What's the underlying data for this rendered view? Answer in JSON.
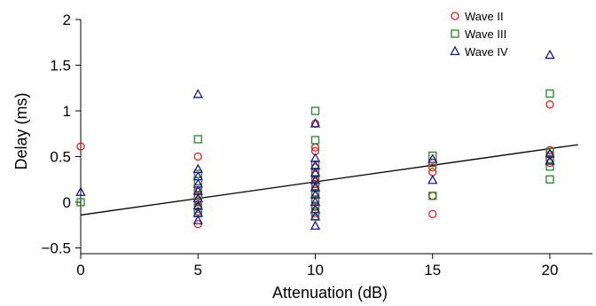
{
  "chart_data": {
    "type": "scatter",
    "title": "",
    "xlabel": "Attenuation (dB)",
    "ylabel": "Delay (ms)",
    "xlim": [
      0,
      21.5
    ],
    "ylim": [
      -0.5,
      2
    ],
    "xticks": [
      0,
      5,
      10,
      15,
      20
    ],
    "yticks": [
      -0.5,
      0,
      0.5,
      1,
      1.5,
      2
    ],
    "xtick_labels": [
      "0",
      "5",
      "10",
      "15",
      "20"
    ],
    "ytick_labels": [
      "−0.5",
      "0",
      "0.5",
      "1",
      "1.5",
      "2"
    ],
    "grid": false,
    "legend_position": "top-right",
    "series": [
      {
        "name": "Wave II",
        "marker": "circle",
        "color": "#e0201b",
        "points": [
          [
            0,
            0.61
          ],
          [
            5,
            0.5
          ],
          [
            5,
            0.12
          ],
          [
            5,
            0.06
          ],
          [
            5,
            0.02
          ],
          [
            5,
            -0.05
          ],
          [
            5,
            -0.1
          ],
          [
            5,
            -0.24
          ],
          [
            10,
            0.86
          ],
          [
            10,
            0.6
          ],
          [
            10,
            0.56
          ],
          [
            10,
            0.38
          ],
          [
            10,
            0.3
          ],
          [
            10,
            0.25
          ],
          [
            10,
            0.2
          ],
          [
            10,
            0.15
          ],
          [
            10,
            0.1
          ],
          [
            10,
            0.02
          ],
          [
            10,
            -0.05
          ],
          [
            10,
            -0.12
          ],
          [
            15,
            0.43
          ],
          [
            15,
            0.38
          ],
          [
            15,
            0.33
          ],
          [
            15,
            0.07
          ],
          [
            15,
            -0.13
          ],
          [
            20,
            1.07
          ],
          [
            20,
            0.57
          ],
          [
            20,
            0.52
          ],
          [
            20,
            0.47
          ],
          [
            20,
            0.43
          ]
        ]
      },
      {
        "name": "Wave III",
        "marker": "square",
        "color": "#1f8a1f",
        "points": [
          [
            0,
            0.0
          ],
          [
            5,
            0.69
          ],
          [
            5,
            0.31
          ],
          [
            5,
            0.23
          ],
          [
            5,
            0.15
          ],
          [
            5,
            0.08
          ],
          [
            5,
            0.0
          ],
          [
            5,
            -0.07
          ],
          [
            5,
            -0.12
          ],
          [
            10,
            1.0
          ],
          [
            10,
            0.68
          ],
          [
            10,
            0.41
          ],
          [
            10,
            0.33
          ],
          [
            10,
            0.25
          ],
          [
            10,
            0.17
          ],
          [
            10,
            0.1
          ],
          [
            10,
            0.03
          ],
          [
            10,
            -0.04
          ],
          [
            10,
            -0.1
          ],
          [
            10,
            -0.15
          ],
          [
            15,
            0.51
          ],
          [
            15,
            0.43
          ],
          [
            15,
            0.07
          ],
          [
            20,
            1.19
          ],
          [
            20,
            0.55
          ],
          [
            20,
            0.47
          ],
          [
            20,
            0.39
          ],
          [
            20,
            0.25
          ]
        ]
      },
      {
        "name": "Wave IV",
        "marker": "triangle",
        "color": "#1a1a8c",
        "points": [
          [
            0,
            0.11
          ],
          [
            5,
            1.18
          ],
          [
            5,
            0.36
          ],
          [
            5,
            0.28
          ],
          [
            5,
            0.2
          ],
          [
            5,
            0.12
          ],
          [
            5,
            0.04
          ],
          [
            5,
            -0.04
          ],
          [
            5,
            -0.12
          ],
          [
            5,
            -0.2
          ],
          [
            10,
            0.86
          ],
          [
            10,
            0.48
          ],
          [
            10,
            0.4
          ],
          [
            10,
            0.32
          ],
          [
            10,
            0.24
          ],
          [
            10,
            0.16
          ],
          [
            10,
            0.08
          ],
          [
            10,
            0.0
          ],
          [
            10,
            -0.08
          ],
          [
            10,
            -0.16
          ],
          [
            10,
            -0.26
          ],
          [
            15,
            0.47
          ],
          [
            15,
            0.24
          ],
          [
            20,
            1.61
          ],
          [
            20,
            0.53
          ],
          [
            20,
            0.45
          ]
        ]
      }
    ],
    "trendline": {
      "x": [
        0,
        21.2
      ],
      "y": [
        -0.14,
        0.63
      ],
      "color": "#000000"
    }
  }
}
